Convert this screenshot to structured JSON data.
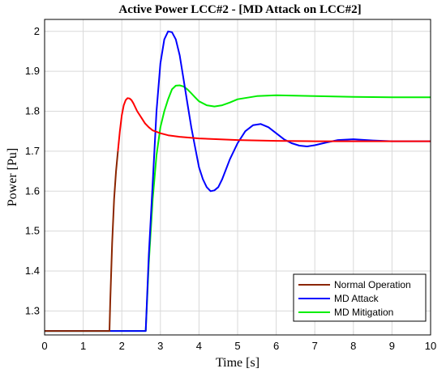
{
  "chart_data": {
    "type": "line",
    "title": "Active Power LCC#2 - [MD Attack on LCC#2]",
    "xlabel": "Time [s]",
    "ylabel": "Power [Pu]",
    "xlim": [
      0,
      10
    ],
    "ylim": [
      1.24,
      2.03
    ],
    "xticks": [
      "0",
      "1",
      "2",
      "3",
      "4",
      "5",
      "6",
      "7",
      "8",
      "9",
      "10"
    ],
    "yticks": [
      "1.3",
      "1.4",
      "1.5",
      "1.6",
      "1.7",
      "1.8",
      "1.9",
      "2"
    ],
    "grid": true,
    "legend_position": "bottom-right",
    "series": [
      {
        "name": "Normal Operation",
        "color": "#8b2500",
        "x": [
          0,
          1.68,
          1.7,
          1.75,
          1.8,
          1.85,
          1.9
        ],
        "y": [
          1.25,
          1.25,
          1.32,
          1.47,
          1.58,
          1.65,
          1.7
        ]
      },
      {
        "name": "MD Attack",
        "color": "#0000ff",
        "x": [
          0,
          2.62,
          2.7,
          2.8,
          2.9,
          3.0,
          3.1,
          3.2,
          3.3,
          3.4,
          3.5,
          3.6,
          3.7,
          3.8,
          3.9,
          4.0,
          4.1,
          4.2,
          4.3,
          4.4,
          4.5,
          4.6,
          4.8,
          5.0,
          5.2,
          5.4,
          5.6,
          5.8,
          6.0,
          6.2,
          6.4,
          6.6,
          6.8,
          7.0,
          7.3,
          7.6,
          8.0,
          8.5,
          9.0,
          10.0
        ],
        "y": [
          1.25,
          1.25,
          1.44,
          1.62,
          1.8,
          1.92,
          1.98,
          2.0,
          1.998,
          1.98,
          1.94,
          1.88,
          1.82,
          1.76,
          1.71,
          1.66,
          1.63,
          1.61,
          1.6,
          1.602,
          1.61,
          1.63,
          1.68,
          1.72,
          1.75,
          1.765,
          1.768,
          1.76,
          1.745,
          1.73,
          1.72,
          1.714,
          1.712,
          1.715,
          1.722,
          1.728,
          1.73,
          1.727,
          1.725,
          1.725
        ]
      },
      {
        "name": "MD Mitigation",
        "color": "#00ee00",
        "x": [
          0,
          2.62,
          2.7,
          2.8,
          2.9,
          3.0,
          3.1,
          3.2,
          3.3,
          3.4,
          3.5,
          3.6,
          3.7,
          3.8,
          3.9,
          4.0,
          4.2,
          4.4,
          4.6,
          4.8,
          5.0,
          5.5,
          6.0,
          6.5,
          7.0,
          8.0,
          9.0,
          10.0
        ],
        "y": [
          1.25,
          1.25,
          1.42,
          1.58,
          1.69,
          1.76,
          1.8,
          1.83,
          1.855,
          1.864,
          1.865,
          1.862,
          1.855,
          1.845,
          1.835,
          1.825,
          1.815,
          1.812,
          1.815,
          1.822,
          1.83,
          1.838,
          1.84,
          1.839,
          1.838,
          1.836,
          1.835,
          1.835
        ]
      },
      {
        "name": "",
        "color": "#ff0000",
        "x": [
          1.9,
          1.95,
          2.0,
          2.05,
          2.1,
          2.15,
          2.2,
          2.25,
          2.3,
          2.4,
          2.5,
          2.6,
          2.7,
          2.8,
          3.0,
          3.2,
          3.5,
          4.0,
          4.5,
          5.0,
          6.0,
          7.0,
          8.0,
          9.0,
          10.0
        ],
        "y": [
          1.7,
          1.75,
          1.79,
          1.815,
          1.828,
          1.833,
          1.832,
          1.828,
          1.82,
          1.8,
          1.785,
          1.77,
          1.76,
          1.752,
          1.745,
          1.74,
          1.736,
          1.732,
          1.73,
          1.728,
          1.726,
          1.725,
          1.725,
          1.725,
          1.725
        ]
      }
    ]
  }
}
